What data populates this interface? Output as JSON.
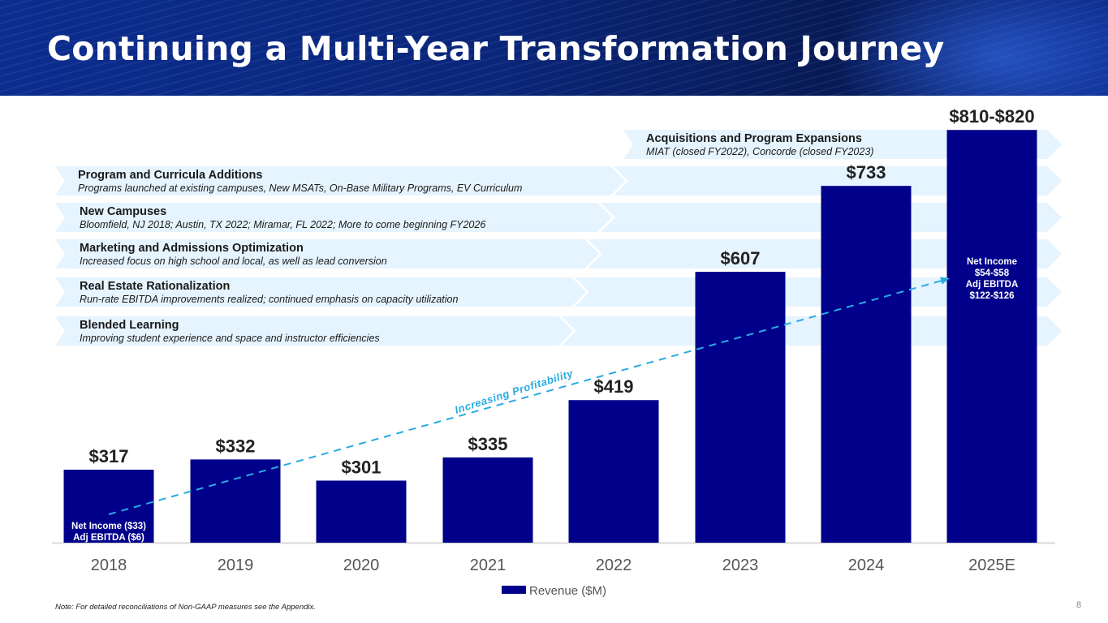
{
  "header": {
    "title": "Continuing a Multi-Year Transformation Journey"
  },
  "colors": {
    "bar": "#00008b",
    "band": "#e6f4ff",
    "trend": "#29abe2",
    "header": "#0a2679"
  },
  "bands": [
    {
      "title": "Acquisitions and Program Expansions",
      "subtitle": "MIAT (closed FY2022), Concorde (closed FY2023)"
    },
    {
      "title": "Program and Curricula Additions",
      "subtitle": "Programs launched at existing campuses, New MSATs, On-Base Military Programs, EV Curriculum"
    },
    {
      "title": "New Campuses",
      "subtitle": "Bloomfield, NJ 2018; Austin, TX 2022; Miramar, FL 2022; More to come beginning FY2026"
    },
    {
      "title": "Marketing and Admissions Optimization",
      "subtitle": "Increased focus on high school and local, as well as lead conversion"
    },
    {
      "title": "Real Estate Rationalization",
      "subtitle": "Run-rate EBITDA improvements realized; continued emphasis on capacity utilization"
    },
    {
      "title": "Blended Learning",
      "subtitle": "Improving student experience and space and instructor efficiencies"
    }
  ],
  "chart_data": {
    "type": "bar",
    "categories": [
      "2018",
      "2019",
      "2020",
      "2021",
      "2022",
      "2023",
      "2024",
      "2025E"
    ],
    "series": [
      {
        "name": "Revenue ($M)",
        "values": [
          317,
          332,
          301,
          335,
          419,
          607,
          733,
          815
        ]
      }
    ],
    "data_labels": [
      "$317",
      "$332",
      "$301",
      "$335",
      "$419",
      "$607",
      "$733",
      "$810-$820"
    ],
    "ylim": [
      210,
      820
    ],
    "grid": false,
    "legend": "bottom-center",
    "annotations": {
      "first_bar": [
        "Net Income ($33)",
        "Adj EBITDA ($6)"
      ],
      "last_bar": [
        "Net Income",
        "$54-$58",
        "Adj EBITDA",
        "$122-$126"
      ],
      "trend": "Increasing Profitability"
    }
  },
  "footer": {
    "note": "Note: For detailed reconciliations of Non-GAAP measures see the Appendix.",
    "page": "8"
  }
}
